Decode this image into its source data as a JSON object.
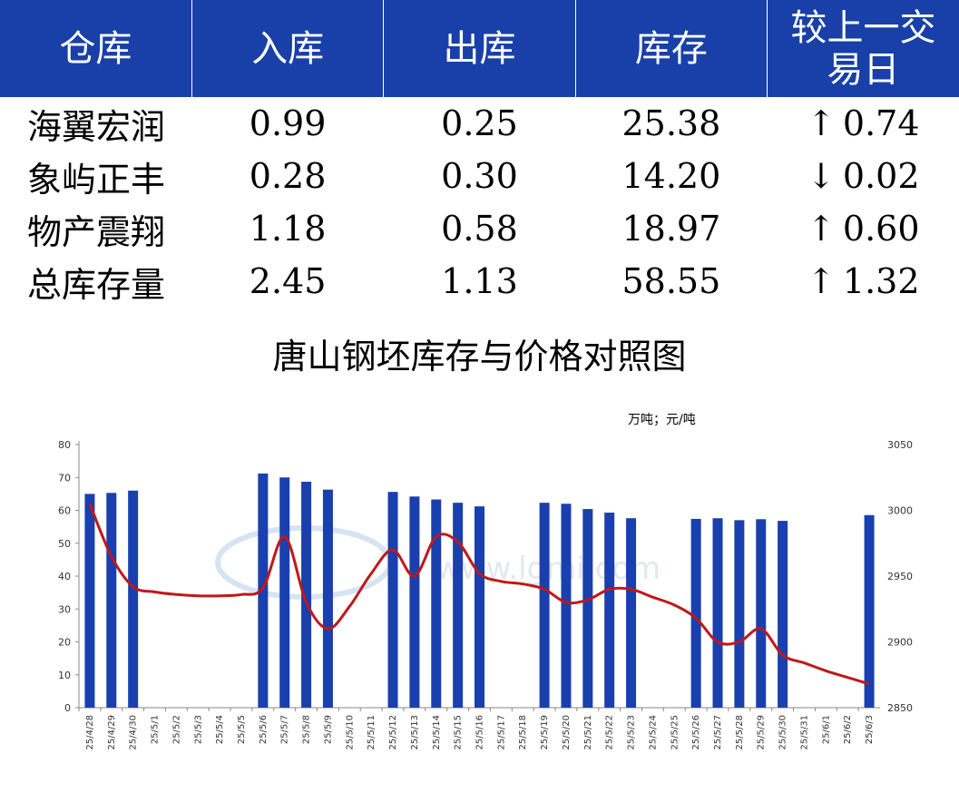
{
  "table": {
    "headers": [
      "仓库",
      "入库",
      "出库",
      "库存",
      "较上一交易日"
    ],
    "rows": [
      {
        "name": "海翼宏润",
        "in": "0.99",
        "out": "0.25",
        "stock": "25.38",
        "change": "0.74",
        "dir": "up",
        "arrow": "↑"
      },
      {
        "name": "象屿正丰",
        "in": "0.28",
        "out": "0.30",
        "stock": "14.20",
        "change": "0.02",
        "dir": "down",
        "arrow": "↓"
      },
      {
        "name": "物产震翔",
        "in": "1.18",
        "out": "0.58",
        "stock": "18.97",
        "change": "0.60",
        "dir": "up",
        "arrow": "↑"
      },
      {
        "name": "总库存量",
        "in": "2.45",
        "out": "1.13",
        "stock": "58.55",
        "change": "1.32",
        "dir": "up",
        "arrow": "↑"
      }
    ]
  },
  "colors": {
    "header_bg": "#1840a8",
    "bar": "#1a3fae",
    "line": "#c01818",
    "up": "#e00000",
    "down": "#1a7a10"
  },
  "chart_data": {
    "type": "bar+line",
    "title": "唐山钢坯库存与价格对照图",
    "unit_note": "万吨；元/吨",
    "categories": [
      "25/4/28",
      "25/4/29",
      "25/4/30",
      "25/5/1",
      "25/5/2",
      "25/5/3",
      "25/5/4",
      "25/5/5",
      "25/5/6",
      "25/5/7",
      "25/5/8",
      "25/5/9",
      "25/5/10",
      "25/5/11",
      "25/5/12",
      "25/5/13",
      "25/5/14",
      "25/5/15",
      "25/5/16",
      "25/5/17",
      "25/5/18",
      "25/5/19",
      "25/5/20",
      "25/5/21",
      "25/5/22",
      "25/5/23",
      "25/5/24",
      "25/5/25",
      "25/5/26",
      "25/5/27",
      "25/5/28",
      "25/5/29",
      "25/5/30",
      "25/5/31",
      "25/6/1",
      "25/6/2",
      "25/6/3"
    ],
    "series": [
      {
        "type": "bar",
        "axis": "left",
        "values": [
          65,
          65.3,
          66,
          null,
          null,
          null,
          null,
          null,
          71.2,
          70,
          68.7,
          66.3,
          null,
          null,
          65.6,
          64.2,
          63.3,
          62.3,
          61.2,
          null,
          null,
          62.3,
          62,
          60.4,
          59.3,
          57.6,
          null,
          null,
          57.4,
          57.6,
          57,
          57.3,
          56.8,
          null,
          null,
          null,
          58.55
        ]
      },
      {
        "type": "line",
        "axis": "right",
        "smooth": true,
        "values": [
          3005,
          2965,
          2942,
          2938,
          2936,
          2935,
          2935,
          2936,
          2941,
          2980,
          2930,
          2910,
          2927,
          2952,
          2970,
          2950,
          2980,
          2976,
          2952,
          2946,
          2944,
          2940,
          2930,
          2932,
          2940,
          2940,
          2934,
          2928,
          2918,
          2900,
          2900,
          2910,
          2890,
          2884,
          2878,
          2873,
          2868
        ]
      }
    ],
    "y_left": {
      "min": 0,
      "max": 80,
      "ticks": [
        0,
        10,
        20,
        30,
        40,
        50,
        60,
        70,
        80
      ]
    },
    "y_right": {
      "min": 2850,
      "max": 3050,
      "ticks": [
        2850,
        2900,
        2950,
        3000,
        3050
      ]
    },
    "watermark": "www.lgmi.com"
  }
}
